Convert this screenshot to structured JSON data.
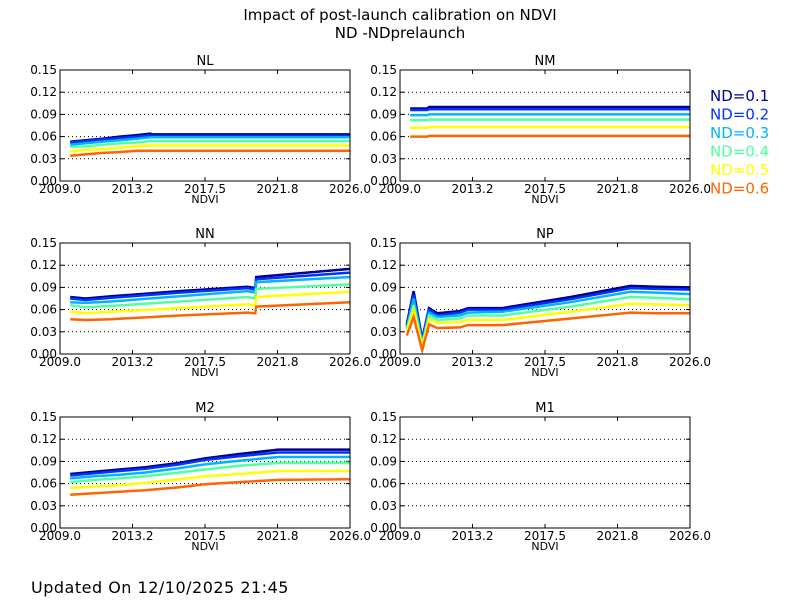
{
  "title": "Impact of post-launch calibration on NDVI",
  "subtitle": "ND -NDprelaunch",
  "footer": "Updated On 12/10/2025 21:45",
  "legend": [
    {
      "label": "ND=0.1",
      "color": "#00008c"
    },
    {
      "label": "ND=0.2",
      "color": "#0032ff"
    },
    {
      "label": "ND=0.3",
      "color": "#00b4ff"
    },
    {
      "label": "ND=0.4",
      "color": "#50ffa0"
    },
    {
      "label": "ND=0.5",
      "color": "#ffff00"
    },
    {
      "label": "ND=0.6",
      "color": "#ff6400"
    }
  ],
  "chart_data": [
    {
      "type": "line",
      "title": "NL",
      "xlabel": "NDVI",
      "xlim": [
        2009.0,
        2026.0
      ],
      "ylim": [
        0.0,
        0.15
      ],
      "xticks": [
        "2009.0",
        "2013.2",
        "2017.5",
        "2021.8",
        "2026.0"
      ],
      "yticks": [
        "0.00",
        "0.03",
        "0.06",
        "0.09",
        "0.12",
        "0.15"
      ],
      "grid": "dotted horizontal",
      "x": [
        2009.6,
        2010.5,
        2011.5,
        2012.5,
        2013.5,
        2014.3,
        2014.4,
        2026.0
      ],
      "series": [
        {
          "name": "ND=0.1",
          "values": [
            0.053,
            0.055,
            0.057,
            0.06,
            0.062,
            0.064,
            0.063,
            0.063
          ]
        },
        {
          "name": "ND=0.2",
          "values": [
            0.052,
            0.054,
            0.056,
            0.058,
            0.06,
            0.062,
            0.061,
            0.061
          ]
        },
        {
          "name": "ND=0.3",
          "values": [
            0.049,
            0.051,
            0.053,
            0.055,
            0.057,
            0.059,
            0.059,
            0.059
          ]
        },
        {
          "name": "ND=0.4",
          "values": [
            0.046,
            0.047,
            0.049,
            0.051,
            0.052,
            0.054,
            0.054,
            0.054
          ]
        },
        {
          "name": "ND=0.5",
          "values": [
            0.04,
            0.042,
            0.043,
            0.045,
            0.047,
            0.048,
            0.048,
            0.048
          ]
        },
        {
          "name": "ND=0.6",
          "values": [
            0.034,
            0.036,
            0.038,
            0.039,
            0.041,
            0.041,
            0.041,
            0.041
          ]
        }
      ]
    },
    {
      "type": "line",
      "title": "NM",
      "xlabel": "NDVI",
      "xlim": [
        2009.0,
        2026.0
      ],
      "ylim": [
        0.0,
        0.15
      ],
      "xticks": [
        "2009.0",
        "2013.2",
        "2017.5",
        "2021.8",
        "2026.0"
      ],
      "yticks": [
        "0.00",
        "0.03",
        "0.06",
        "0.09",
        "0.12",
        "0.15"
      ],
      "grid": "dotted horizontal",
      "x": [
        2009.6,
        2010.6,
        2010.7,
        2026.0
      ],
      "series": [
        {
          "name": "ND=0.1",
          "values": [
            0.098,
            0.098,
            0.1,
            0.1
          ]
        },
        {
          "name": "ND=0.2",
          "values": [
            0.096,
            0.096,
            0.097,
            0.097
          ]
        },
        {
          "name": "ND=0.3",
          "values": [
            0.089,
            0.089,
            0.09,
            0.09
          ]
        },
        {
          "name": "ND=0.4",
          "values": [
            0.082,
            0.082,
            0.083,
            0.083
          ]
        },
        {
          "name": "ND=0.5",
          "values": [
            0.072,
            0.072,
            0.073,
            0.073
          ]
        },
        {
          "name": "ND=0.6",
          "values": [
            0.06,
            0.06,
            0.061,
            0.061
          ]
        }
      ]
    },
    {
      "type": "line",
      "title": "NN",
      "xlabel": "NDVI",
      "xlim": [
        2009.0,
        2026.0
      ],
      "ylim": [
        0.0,
        0.15
      ],
      "xticks": [
        "2009.0",
        "2013.2",
        "2017.5",
        "2021.8",
        "2026.0"
      ],
      "yticks": [
        "0.00",
        "0.03",
        "0.06",
        "0.09",
        "0.12",
        "0.15"
      ],
      "grid": "dotted horizontal",
      "x": [
        2009.6,
        2010.5,
        2012.0,
        2016.0,
        2020.0,
        2020.45,
        2020.5,
        2026.0
      ],
      "series": [
        {
          "name": "ND=0.1",
          "values": [
            0.077,
            0.075,
            0.078,
            0.085,
            0.091,
            0.089,
            0.104,
            0.115
          ]
        },
        {
          "name": "ND=0.2",
          "values": [
            0.075,
            0.073,
            0.076,
            0.083,
            0.089,
            0.087,
            0.101,
            0.11
          ]
        },
        {
          "name": "ND=0.3",
          "values": [
            0.07,
            0.069,
            0.071,
            0.078,
            0.085,
            0.083,
            0.097,
            0.104
          ]
        },
        {
          "name": "ND=0.4",
          "values": [
            0.066,
            0.063,
            0.065,
            0.071,
            0.077,
            0.075,
            0.088,
            0.094
          ]
        },
        {
          "name": "ND=0.5",
          "values": [
            0.057,
            0.055,
            0.057,
            0.062,
            0.067,
            0.066,
            0.077,
            0.084
          ]
        },
        {
          "name": "ND=0.6",
          "values": [
            0.047,
            0.046,
            0.047,
            0.052,
            0.056,
            0.055,
            0.064,
            0.07
          ]
        }
      ]
    },
    {
      "type": "line",
      "title": "NP",
      "xlabel": "NDVI",
      "xlim": [
        2009.0,
        2026.0
      ],
      "ylim": [
        0.0,
        0.15
      ],
      "xticks": [
        "2009.0",
        "2013.2",
        "2017.5",
        "2021.8",
        "2026.0"
      ],
      "yticks": [
        "0.00",
        "0.03",
        "0.06",
        "0.09",
        "0.12",
        "0.15"
      ],
      "grid": "dotted horizontal",
      "x": [
        2009.4,
        2009.8,
        2010.3,
        2010.7,
        2011.2,
        2012.5,
        2013.0,
        2015.0,
        2019.0,
        2022.5,
        2024.0,
        2026.0
      ],
      "series": [
        {
          "name": "ND=0.1",
          "values": [
            0.04,
            0.085,
            0.02,
            0.062,
            0.055,
            0.058,
            0.062,
            0.062,
            0.077,
            0.092,
            0.091,
            0.09
          ]
        },
        {
          "name": "ND=0.2",
          "values": [
            0.038,
            0.08,
            0.018,
            0.06,
            0.052,
            0.056,
            0.06,
            0.06,
            0.074,
            0.089,
            0.088,
            0.087
          ]
        },
        {
          "name": "ND=0.3",
          "values": [
            0.035,
            0.075,
            0.015,
            0.056,
            0.05,
            0.052,
            0.056,
            0.057,
            0.07,
            0.084,
            0.083,
            0.081
          ]
        },
        {
          "name": "ND=0.4",
          "values": [
            0.033,
            0.066,
            0.012,
            0.052,
            0.046,
            0.048,
            0.052,
            0.052,
            0.064,
            0.077,
            0.076,
            0.074
          ]
        },
        {
          "name": "ND=0.5",
          "values": [
            0.03,
            0.06,
            0.01,
            0.047,
            0.042,
            0.043,
            0.046,
            0.046,
            0.057,
            0.068,
            0.067,
            0.066
          ]
        },
        {
          "name": "ND=0.6",
          "values": [
            0.025,
            0.05,
            0.005,
            0.04,
            0.035,
            0.036,
            0.039,
            0.039,
            0.048,
            0.056,
            0.055,
            0.055
          ]
        }
      ]
    },
    {
      "type": "line",
      "title": "M2",
      "xlabel": "NDVI",
      "xlim": [
        2009.0,
        2026.0
      ],
      "ylim": [
        0.0,
        0.15
      ],
      "xticks": [
        "2009.0",
        "2013.2",
        "2017.5",
        "2021.8",
        "2026.0"
      ],
      "yticks": [
        "0.00",
        "0.03",
        "0.06",
        "0.09",
        "0.12",
        "0.15"
      ],
      "grid": "dotted horizontal",
      "x": [
        2009.6,
        2011.0,
        2012.5,
        2014.0,
        2016.0,
        2017.5,
        2019.5,
        2021.8,
        2026.0
      ],
      "series": [
        {
          "name": "ND=0.1",
          "values": [
            0.073,
            0.076,
            0.079,
            0.082,
            0.088,
            0.094,
            0.1,
            0.106,
            0.106
          ]
        },
        {
          "name": "ND=0.2",
          "values": [
            0.071,
            0.074,
            0.077,
            0.08,
            0.086,
            0.092,
            0.097,
            0.102,
            0.102
          ]
        },
        {
          "name": "ND=0.3",
          "values": [
            0.067,
            0.07,
            0.072,
            0.075,
            0.081,
            0.086,
            0.091,
            0.096,
            0.096
          ]
        },
        {
          "name": "ND=0.4",
          "values": [
            0.062,
            0.065,
            0.067,
            0.07,
            0.075,
            0.079,
            0.084,
            0.088,
            0.088
          ]
        },
        {
          "name": "ND=0.5",
          "values": [
            0.054,
            0.056,
            0.058,
            0.061,
            0.066,
            0.07,
            0.073,
            0.077,
            0.077
          ]
        },
        {
          "name": "ND=0.6",
          "values": [
            0.045,
            0.047,
            0.049,
            0.051,
            0.055,
            0.059,
            0.062,
            0.065,
            0.066
          ]
        }
      ]
    },
    {
      "type": "line",
      "title": "M1",
      "xlabel": "NDVI",
      "xlim": [
        2009.0,
        2026.0
      ],
      "ylim": [
        0.0,
        0.15
      ],
      "xticks": [
        "2009.0",
        "2013.2",
        "2017.5",
        "2021.8",
        "2026.0"
      ],
      "yticks": [
        "0.00",
        "0.03",
        "0.06",
        "0.09",
        "0.12",
        "0.15"
      ],
      "grid": "dotted horizontal",
      "x": [],
      "series": []
    }
  ]
}
